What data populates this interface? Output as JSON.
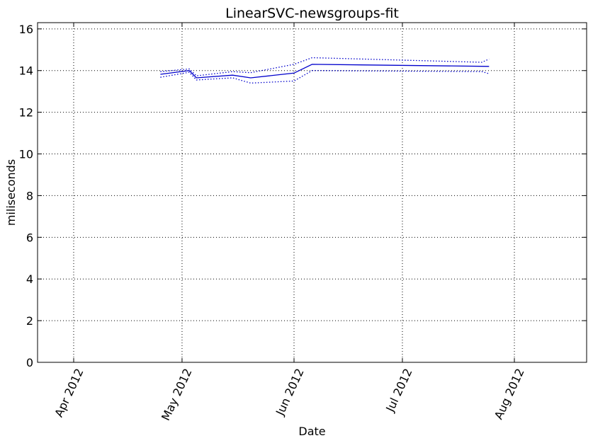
{
  "chart_data": {
    "type": "line",
    "title": "LinearSVC-newsgroups-fit",
    "xlabel": "Date",
    "ylabel": "miliseconds",
    "x_ticks": [
      "2012-04-01",
      "2012-05-01",
      "2012-06-01",
      "2012-07-01",
      "2012-08-01"
    ],
    "x_tick_labels": [
      "Apr 2012",
      "May 2012",
      "Jun 2012",
      "Jul 2012",
      "Aug 2012"
    ],
    "xlim": [
      "2012-03-22",
      "2012-08-21"
    ],
    "y_ticks": [
      0,
      2,
      4,
      6,
      8,
      10,
      12,
      14,
      16
    ],
    "y_tick_labels": [
      "0",
      "2",
      "4",
      "6",
      "8",
      "10",
      "12",
      "14",
      "16"
    ],
    "ylim": [
      0,
      16.3
    ],
    "grid": true,
    "color": "#0000cc",
    "series": [
      {
        "style": "solid",
        "x": [
          "2012-04-25",
          "2012-05-03",
          "2012-05-05",
          "2012-05-15",
          "2012-05-20",
          "2012-06-01",
          "2012-06-06",
          "2012-07-25"
        ],
        "y": [
          13.82,
          14.0,
          13.65,
          13.78,
          13.65,
          13.88,
          14.3,
          14.2
        ]
      },
      {
        "style": "dotted",
        "x": [
          "2012-04-25",
          "2012-05-03",
          "2012-05-05",
          "2012-05-15",
          "2012-05-20",
          "2012-06-01",
          "2012-06-06",
          "2012-07-23",
          "2012-07-25"
        ],
        "y": [
          13.95,
          14.08,
          13.75,
          13.95,
          13.9,
          14.3,
          14.62,
          14.4,
          14.55
        ]
      },
      {
        "style": "dotted",
        "x": [
          "2012-04-25",
          "2012-05-03",
          "2012-05-05",
          "2012-05-15",
          "2012-05-20",
          "2012-06-01",
          "2012-06-06",
          "2012-07-23",
          "2012-07-25"
        ],
        "y": [
          13.68,
          13.92,
          13.55,
          13.65,
          13.4,
          13.5,
          14.0,
          13.95,
          13.85
        ]
      }
    ]
  }
}
